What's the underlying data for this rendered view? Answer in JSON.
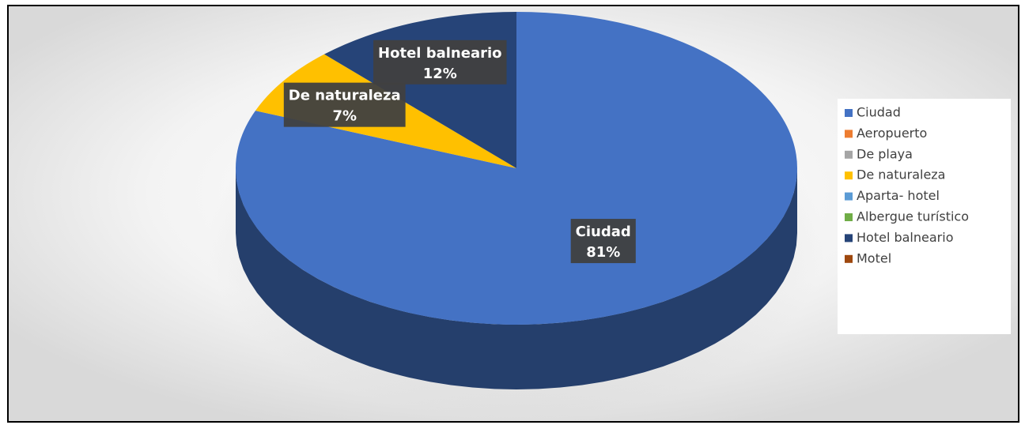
{
  "chart_data": {
    "type": "pie",
    "categories": [
      "Ciudad",
      "Aeropuerto",
      "De playa",
      "De naturaleza",
      "Aparta- hotel",
      "Albergue turístico",
      "Hotel balneario",
      "Motel"
    ],
    "values": [
      81,
      0,
      0,
      7,
      0,
      0,
      12,
      0
    ],
    "value_labels": [
      "81%",
      null,
      null,
      "7%",
      null,
      null,
      "12%",
      null
    ],
    "colors": [
      "#4472c4",
      "#ed7d31",
      "#a5a5a5",
      "#ffc000",
      "#5b9bd5",
      "#70ad47",
      "#264478",
      "#9e480e"
    ],
    "legend": "right"
  }
}
